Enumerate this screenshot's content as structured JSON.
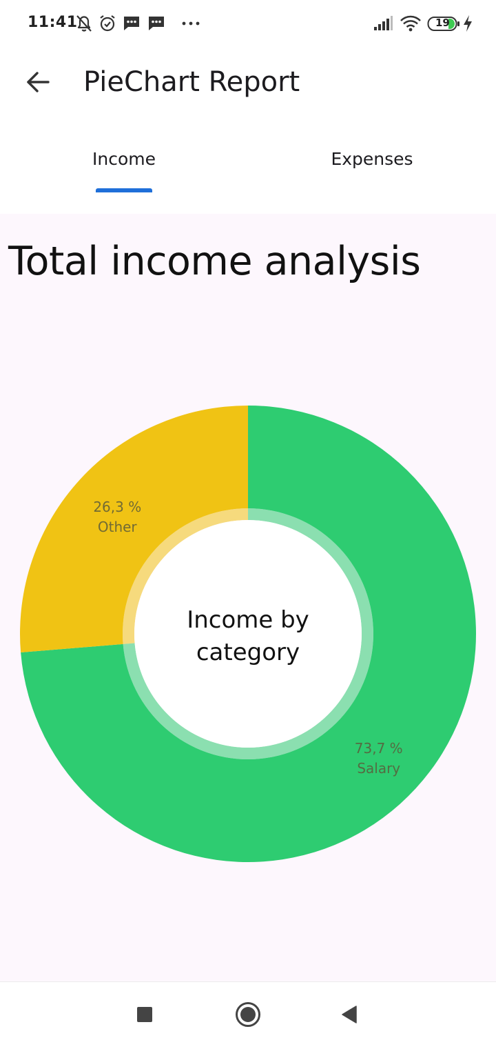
{
  "status_bar": {
    "time": "11:41",
    "battery": "19",
    "icons": [
      "muted-bell-icon",
      "alarm-icon",
      "message-icon",
      "message-icon",
      "more-dots-icon",
      "signal-icon",
      "wifi-icon",
      "battery-icon",
      "charging-icon"
    ]
  },
  "app_bar": {
    "title": "PieChart Report",
    "back_icon": "arrow-back-icon"
  },
  "tabs": [
    {
      "label": "Income",
      "selected": true
    },
    {
      "label": "Expenses",
      "selected": false
    }
  ],
  "colors": {
    "accent": "#1f6fd9",
    "salary": "#2ecc71",
    "other": "#f0c314",
    "background": "#fdf7fd"
  },
  "main": {
    "title": "Total income analysis"
  },
  "chart_data": {
    "type": "pie",
    "center_label": [
      "Income by",
      "category"
    ],
    "slices": [
      {
        "name": "Salary",
        "value": 73.7,
        "percent_label": "73,7 %",
        "color": "#2ecc71"
      },
      {
        "name": "Other",
        "value": 26.3,
        "percent_label": "26,3 %",
        "color": "#f0c314"
      }
    ]
  },
  "nav_bar": {
    "buttons": [
      "recents-square-icon",
      "home-circle-icon",
      "back-triangle-icon"
    ]
  }
}
